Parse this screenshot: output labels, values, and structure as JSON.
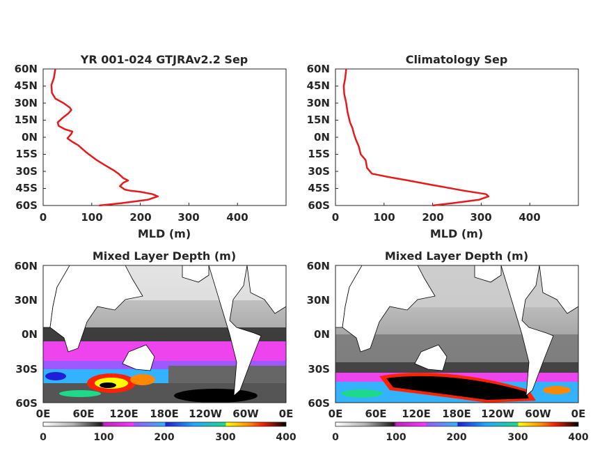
{
  "chart_data": [
    {
      "type": "line",
      "title": "YR 001-024 GTJRAv2.2 Sep",
      "xlabel": "MLD (m)",
      "ylabel": "",
      "xlim": [
        0,
        500
      ],
      "ylim": [
        -60,
        60
      ],
      "xticks": [
        "0",
        "100",
        "200",
        "300",
        "400"
      ],
      "yticks": [
        "60N",
        "45N",
        "30N",
        "15N",
        "0N",
        "15S",
        "30S",
        "45S",
        "60S"
      ],
      "series": [
        {
          "color": "#e41a1c",
          "points": [
            [
              115,
              -60
            ],
            [
              160,
              -58
            ],
            [
              215,
              -55
            ],
            [
              236,
              -52
            ],
            [
              225,
              -50
            ],
            [
              200,
              -48
            ],
            [
              180,
              -47
            ],
            [
              168,
              -46
            ],
            [
              158,
              -43
            ],
            [
              165,
              -40
            ],
            [
              175,
              -38
            ],
            [
              165,
              -36
            ],
            [
              155,
              -32
            ],
            [
              145,
              -29
            ],
            [
              125,
              -24
            ],
            [
              110,
              -20
            ],
            [
              88,
              -13
            ],
            [
              72,
              -7
            ],
            [
              60,
              -4
            ],
            [
              50,
              -1
            ],
            [
              58,
              3
            ],
            [
              60,
              5
            ],
            [
              45,
              7
            ],
            [
              32,
              10
            ],
            [
              30,
              13
            ],
            [
              40,
              17
            ],
            [
              52,
              21
            ],
            [
              58,
              24
            ],
            [
              55,
              26
            ],
            [
              42,
              30
            ],
            [
              25,
              34
            ],
            [
              18,
              39
            ],
            [
              17,
              46
            ],
            [
              22,
              52
            ],
            [
              25,
              60
            ]
          ]
        }
      ]
    },
    {
      "type": "line",
      "title": "Climatology Sep",
      "xlabel": "MLD (m)",
      "ylabel": "",
      "xlim": [
        0,
        500
      ],
      "ylim": [
        -60,
        60
      ],
      "xticks": [
        "0",
        "100",
        "200",
        "300",
        "400"
      ],
      "yticks": [
        "60N",
        "45N",
        "30N",
        "15N",
        "0N",
        "15S",
        "30S",
        "45S",
        "60S"
      ],
      "series": [
        {
          "color": "#e41a1c",
          "points": [
            [
              200,
              -60
            ],
            [
              240,
              -58
            ],
            [
              295,
              -55
            ],
            [
              315,
              -52
            ],
            [
              310,
              -50
            ],
            [
              265,
              -47
            ],
            [
              200,
              -42
            ],
            [
              150,
              -38
            ],
            [
              110,
              -35
            ],
            [
              75,
              -32
            ],
            [
              65,
              -27
            ],
            [
              62,
              -20
            ],
            [
              52,
              -15
            ],
            [
              48,
              -8
            ],
            [
              42,
              -2
            ],
            [
              38,
              3
            ],
            [
              35,
              8
            ],
            [
              30,
              13
            ],
            [
              25,
              22
            ],
            [
              22,
              30
            ],
            [
              18,
              38
            ],
            [
              17,
              45
            ],
            [
              20,
              52
            ],
            [
              22,
              60
            ]
          ]
        }
      ]
    },
    {
      "type": "heatmap",
      "title": "Mixed Layer Depth (m)",
      "xticks": [
        "0E",
        "60E",
        "120E",
        "180E",
        "120W",
        "60W",
        "0E"
      ],
      "yticks": [
        "60N",
        "30N",
        "0N",
        "30S",
        "60S"
      ],
      "colorbar_ticks": [
        "0",
        "100",
        "200",
        "300",
        "400"
      ],
      "colorbar_range": [
        0,
        400
      ],
      "pattern": "model"
    },
    {
      "type": "heatmap",
      "title": "Mixed Layer Depth (m)",
      "xticks": [
        "0E",
        "60E",
        "120E",
        "180E",
        "120W",
        "60W",
        "0E"
      ],
      "yticks": [
        "60N",
        "30N",
        "0N",
        "30S",
        "60S"
      ],
      "colorbar_ticks": [
        "0",
        "100",
        "200",
        "300",
        "400"
      ],
      "colorbar_range": [
        0,
        400
      ],
      "pattern": "climatology"
    }
  ]
}
